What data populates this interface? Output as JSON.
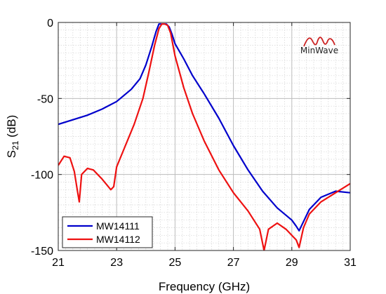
{
  "chart_data": {
    "type": "line",
    "title": "",
    "xlabel": "Frequency (GHz)",
    "ylabel_main": "S",
    "ylabel_sub": "21",
    "ylabel_unit": " (dB)",
    "xlim": [
      21,
      31
    ],
    "ylim": [
      -150,
      0
    ],
    "xticks": [
      21,
      23,
      25,
      27,
      29,
      31
    ],
    "xtick_labels": [
      "21",
      "23",
      "25",
      "27",
      "29",
      "31"
    ],
    "yticks": [
      0,
      -50,
      -100,
      -150
    ],
    "ytick_labels": [
      "0",
      "-50",
      "-100",
      "-150"
    ],
    "grid": true,
    "minor_grid": true,
    "legend_position": "bottom-left",
    "logo_text": "MinWave",
    "logo_color": "#cc2222",
    "series": [
      {
        "name": "MW14111",
        "color": "#0000cc",
        "x": [
          21,
          21.5,
          22,
          22.5,
          23,
          23.5,
          23.8,
          24.0,
          24.2,
          24.35,
          24.45,
          24.55,
          24.7,
          24.8,
          24.9,
          25.0,
          25.3,
          25.6,
          26,
          26.5,
          27,
          27.5,
          28,
          28.5,
          29,
          29.15,
          29.25,
          29.4,
          29.6,
          30,
          30.5,
          31
        ],
        "y": [
          -67,
          -64,
          -61,
          -57,
          -52,
          -44,
          -37,
          -28,
          -16,
          -6,
          -1,
          -1,
          -1,
          -3,
          -8,
          -14,
          -24,
          -35,
          -47,
          -63,
          -81,
          -97,
          -111,
          -122,
          -130,
          -134,
          -137,
          -131,
          -123,
          -115,
          -111,
          -112
        ]
      },
      {
        "name": "MW14112",
        "color": "#ee1111",
        "x": [
          21,
          21.2,
          21.4,
          21.55,
          21.65,
          21.72,
          21.8,
          22.0,
          22.2,
          22.5,
          22.8,
          22.9,
          23.0,
          23.3,
          23.6,
          23.9,
          24.1,
          24.3,
          24.45,
          24.55,
          24.65,
          24.75,
          24.85,
          25.0,
          25.3,
          25.6,
          26,
          26.5,
          27,
          27.5,
          27.9,
          28.05,
          28.2,
          28.5,
          28.8,
          29.0,
          29.15,
          29.25,
          29.4,
          29.6,
          30,
          30.5,
          31
        ],
        "y": [
          -94,
          -88,
          -89,
          -98,
          -110,
          -118,
          -100,
          -96,
          -97,
          -103,
          -110,
          -108,
          -95,
          -81,
          -67,
          -50,
          -33,
          -15,
          -4,
          -1,
          -1,
          -2,
          -7,
          -22,
          -43,
          -60,
          -78,
          -97,
          -112,
          -124,
          -136,
          -150,
          -136,
          -132,
          -136,
          -140,
          -143,
          -148,
          -135,
          -126,
          -118,
          -112,
          -106
        ]
      }
    ]
  }
}
